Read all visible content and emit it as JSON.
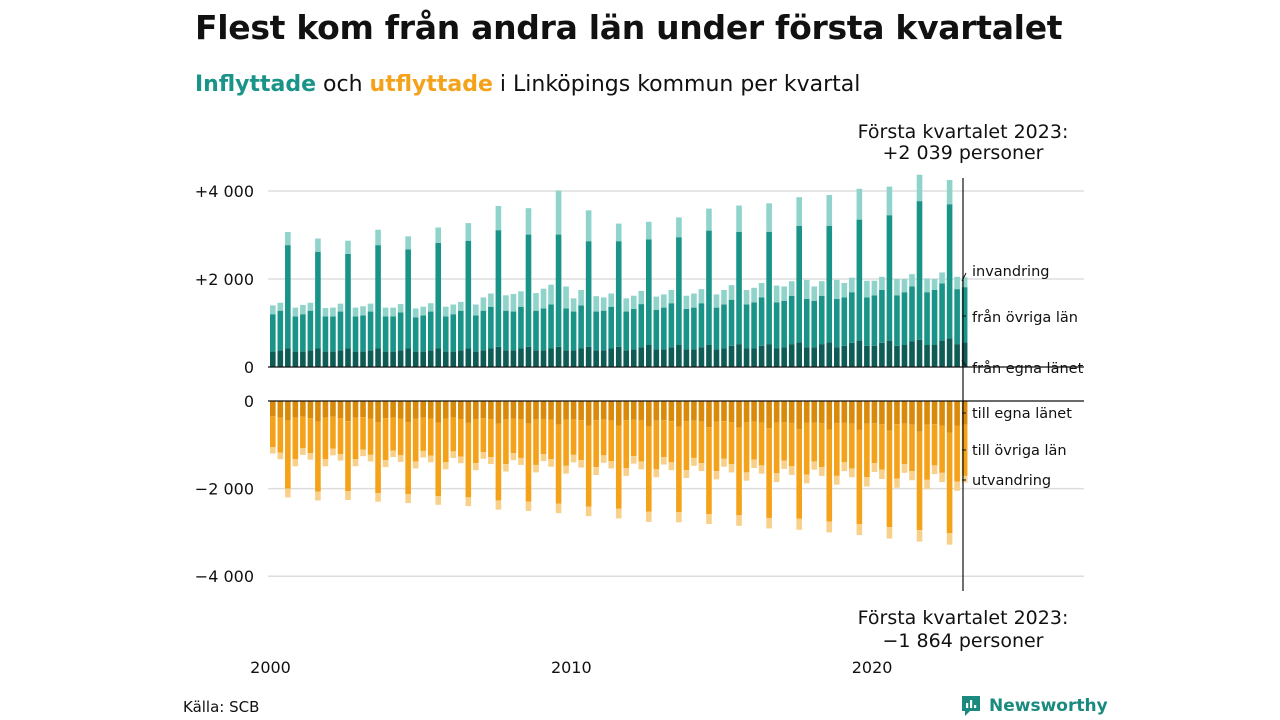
{
  "title": "Flest kom från andra län under första kvartalet",
  "subtitle": {
    "part1": "Inflyttade",
    "part2": " och ",
    "part3": "utflyttade",
    "part4": " i Linköpings kommun per kvartal"
  },
  "source": "Källa: SCB",
  "brand": "Newsworthy",
  "colors": {
    "in_own": "#0e5c55",
    "in_other": "#1a9488",
    "in_immig": "#8fd3cb",
    "out_own": "#d98a0a",
    "out_other": "#f5a21b",
    "out_emig": "#f8d08a",
    "grid": "#dddddd",
    "accent_in": "#1a9488",
    "accent_out": "#f5a21b"
  },
  "chart_data": {
    "type": "bar",
    "stacked": true,
    "x_unit": "quarter",
    "first_period": "2000 Q1",
    "last_period": "2023 Q1",
    "xticks": [
      "2000",
      "2010",
      "2020"
    ],
    "yticks_in": [
      "+4 000",
      "+2 000",
      "0"
    ],
    "yticks_out": [
      "0",
      "−2 000",
      "−4 000"
    ],
    "ylim_in": [
      0,
      4300
    ],
    "ylim_out": [
      -4300,
      0
    ],
    "grid": true,
    "series_labels_in": [
      "invandring",
      "från övriga län",
      "från egna länet"
    ],
    "series_labels_out": [
      "till egna länet",
      "till övriga län",
      "utvandring"
    ],
    "annotation_in": [
      "Första kvartalet 2023:",
      "+2 039 personer"
    ],
    "annotation_out": [
      "Första kvartalet 2023:",
      "−1 864 personer"
    ],
    "series_in": [
      {
        "name": "från egna länet",
        "values": [
          350,
          380,
          420,
          350,
          350,
          380,
          420,
          350,
          350,
          380,
          420,
          350,
          350,
          380,
          420,
          350,
          350,
          380,
          420,
          350,
          350,
          380,
          420,
          350,
          350,
          380,
          420,
          350,
          380,
          420,
          460,
          380,
          380,
          420,
          460,
          380,
          380,
          420,
          460,
          380,
          380,
          420,
          460,
          380,
          380,
          420,
          460,
          380,
          400,
          450,
          500,
          400,
          400,
          450,
          500,
          400,
          400,
          450,
          500,
          400,
          420,
          480,
          520,
          420,
          420,
          480,
          520,
          420,
          450,
          520,
          560,
          450,
          450,
          520,
          560,
          450,
          480,
          550,
          600,
          480,
          480,
          550,
          600,
          480,
          500,
          580,
          620,
          500,
          500,
          600,
          650,
          520,
          560
        ]
      },
      {
        "name": "från övriga län",
        "values": [
          850,
          900,
          2350,
          800,
          850,
          900,
          2200,
          800,
          800,
          880,
          2150,
          800,
          820,
          880,
          2350,
          800,
          800,
          860,
          2250,
          780,
          820,
          880,
          2400,
          800,
          850,
          900,
          2450,
          820,
          900,
          950,
          2650,
          900,
          880,
          950,
          2550,
          900,
          950,
          1000,
          2550,
          950,
          880,
          980,
          2400,
          880,
          900,
          950,
          2400,
          880,
          920,
          980,
          2400,
          900,
          950,
          1000,
          2450,
          920,
          950,
          1000,
          2600,
          950,
          1000,
          1050,
          2550,
          1000,
          1050,
          1100,
          2550,
          1050,
          1050,
          1100,
          2650,
          1100,
          1050,
          1100,
          2650,
          1100,
          1100,
          1150,
          2750,
          1100,
          1150,
          1200,
          2850,
          1150,
          1200,
          1250,
          3150,
          1200,
          1250,
          1300,
          3050,
          1250,
          1255
        ]
      },
      {
        "name": "invandring",
        "values": [
          200,
          180,
          300,
          200,
          210,
          180,
          300,
          190,
          200,
          180,
          300,
          200,
          210,
          180,
          350,
          200,
          200,
          190,
          300,
          200,
          200,
          190,
          350,
          220,
          220,
          200,
          400,
          250,
          300,
          300,
          550,
          350,
          400,
          350,
          600,
          400,
          450,
          450,
          1000,
          500,
          300,
          350,
          700,
          350,
          300,
          300,
          400,
          300,
          300,
          300,
          400,
          300,
          300,
          300,
          450,
          300,
          320,
          320,
          500,
          300,
          330,
          330,
          600,
          330,
          330,
          330,
          650,
          380,
          330,
          330,
          650,
          430,
          330,
          330,
          700,
          430,
          330,
          330,
          700,
          380,
          330,
          300,
          650,
          370,
          300,
          280,
          600,
          310,
          250,
          250,
          550,
          280,
          224
        ]
      }
    ],
    "series_out": [
      {
        "name": "till egna länet",
        "values": [
          -350,
          -380,
          -450,
          -380,
          -360,
          -390,
          -470,
          -380,
          -360,
          -390,
          -460,
          -380,
          -370,
          -400,
          -480,
          -390,
          -380,
          -400,
          -480,
          -400,
          -380,
          -400,
          -490,
          -400,
          -380,
          -410,
          -500,
          -410,
          -390,
          -410,
          -520,
          -420,
          -400,
          -420,
          -520,
          -420,
          -410,
          -430,
          -540,
          -430,
          -420,
          -440,
          -560,
          -440,
          -420,
          -450,
          -560,
          -440,
          -430,
          -450,
          -580,
          -450,
          -440,
          -460,
          -590,
          -460,
          -450,
          -470,
          -600,
          -470,
          -460,
          -480,
          -610,
          -480,
          -470,
          -490,
          -620,
          -490,
          -480,
          -500,
          -640,
          -500,
          -490,
          -510,
          -650,
          -510,
          -500,
          -520,
          -660,
          -520,
          -510,
          -530,
          -680,
          -530,
          -520,
          -540,
          -700,
          -540,
          -530,
          -560,
          -720,
          -560,
          -540
        ]
      },
      {
        "name": "till övriga län",
        "values": [
          -700,
          -800,
          -1550,
          -950,
          -720,
          -800,
          -1600,
          -950,
          -730,
          -820,
          -1600,
          -950,
          -740,
          -830,
          -1620,
          -960,
          -750,
          -840,
          -1650,
          -980,
          -760,
          -850,
          -1680,
          -1000,
          -770,
          -860,
          -1700,
          -1010,
          -780,
          -870,
          -1750,
          -1020,
          -790,
          -880,
          -1780,
          -1040,
          -800,
          -900,
          -1800,
          -1050,
          -810,
          -910,
          -1850,
          -1070,
          -820,
          -920,
          -1900,
          -1090,
          -830,
          -930,
          -1950,
          -1110,
          -840,
          -940,
          -1950,
          -1120,
          -850,
          -950,
          -1980,
          -1130,
          -860,
          -960,
          -2000,
          -1150,
          -870,
          -980,
          -2050,
          -1160,
          -880,
          -990,
          -2050,
          -1180,
          -890,
          -1000,
          -2100,
          -1200,
          -900,
          -1020,
          -2150,
          -1220,
          -910,
          -1040,
          -2200,
          -1240,
          -920,
          -1060,
          -2250,
          -1260,
          -940,
          -1080,
          -2300,
          -1280,
          -1170
        ]
      },
      {
        "name": "utvandring",
        "values": [
          -150,
          -150,
          -200,
          -160,
          -150,
          -150,
          -200,
          -160,
          -150,
          -150,
          -200,
          -160,
          -150,
          -150,
          -200,
          -160,
          -150,
          -150,
          -200,
          -160,
          -150,
          -150,
          -200,
          -160,
          -150,
          -150,
          -200,
          -160,
          -150,
          -160,
          -210,
          -170,
          -160,
          -160,
          -210,
          -170,
          -160,
          -170,
          -220,
          -180,
          -170,
          -170,
          -220,
          -180,
          -170,
          -170,
          -220,
          -180,
          -170,
          -180,
          -230,
          -180,
          -170,
          -180,
          -230,
          -180,
          -180,
          -180,
          -230,
          -190,
          -180,
          -190,
          -240,
          -190,
          -190,
          -190,
          -240,
          -200,
          -190,
          -200,
          -250,
          -200,
          -190,
          -200,
          -250,
          -200,
          -200,
          -200,
          -250,
          -210,
          -200,
          -210,
          -260,
          -210,
          -200,
          -210,
          -260,
          -210,
          -200,
          -210,
          -260,
          -210,
          -154
        ]
      }
    ]
  }
}
